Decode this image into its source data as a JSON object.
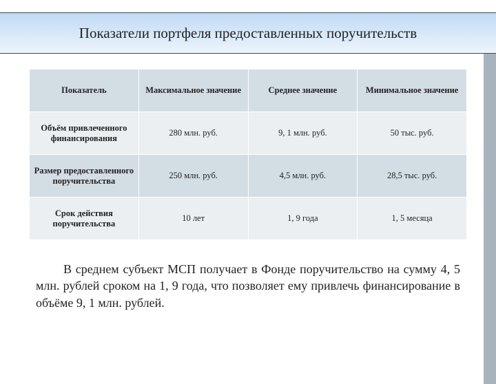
{
  "title": "Показатели портфеля предоставленных поручительств",
  "table": {
    "columns": [
      "Показатель",
      "Максимальное значение",
      "Среднее значение",
      "Минимальное значение"
    ],
    "rows": [
      {
        "label": "Объём привлеченного финансирования",
        "cells": [
          "280 млн. руб.",
          "9, 1 млн. руб.",
          "50 тыс. руб."
        ]
      },
      {
        "label": "Размер предоставленного поручительства",
        "cells": [
          "250 млн. руб.",
          "4,5 млн. руб.",
          "28,5 тыс. руб."
        ]
      },
      {
        "label": "Срок действия поручительства",
        "cells": [
          "10 лет",
          "1, 9 года",
          "1, 5 месяца"
        ]
      }
    ],
    "col_widths": [
      "28%",
      "24%",
      "24%",
      "24%"
    ],
    "header_bg": "#d3dde4",
    "row_odd_bg": "#ebeff2",
    "row_even_bg": "#d3dde4",
    "border_color": "#ffffff",
    "font_size_pt": 12.5
  },
  "paragraph": "В среднем субъект МСП получает в Фонде поручительство на сумму 4, 5 млн. рублей сроком на 1, 9 года, что позволяет ему привлечь финансирование в объёме 9, 1 млн. рублей.",
  "colors": {
    "accent_stripe": "#a8b4bd",
    "title_gradient_top": "#c0daf5",
    "title_gradient_bottom": "#eef4fb",
    "title_border": "#3a4a5a",
    "text": "#222222",
    "background": "#ffffff"
  }
}
